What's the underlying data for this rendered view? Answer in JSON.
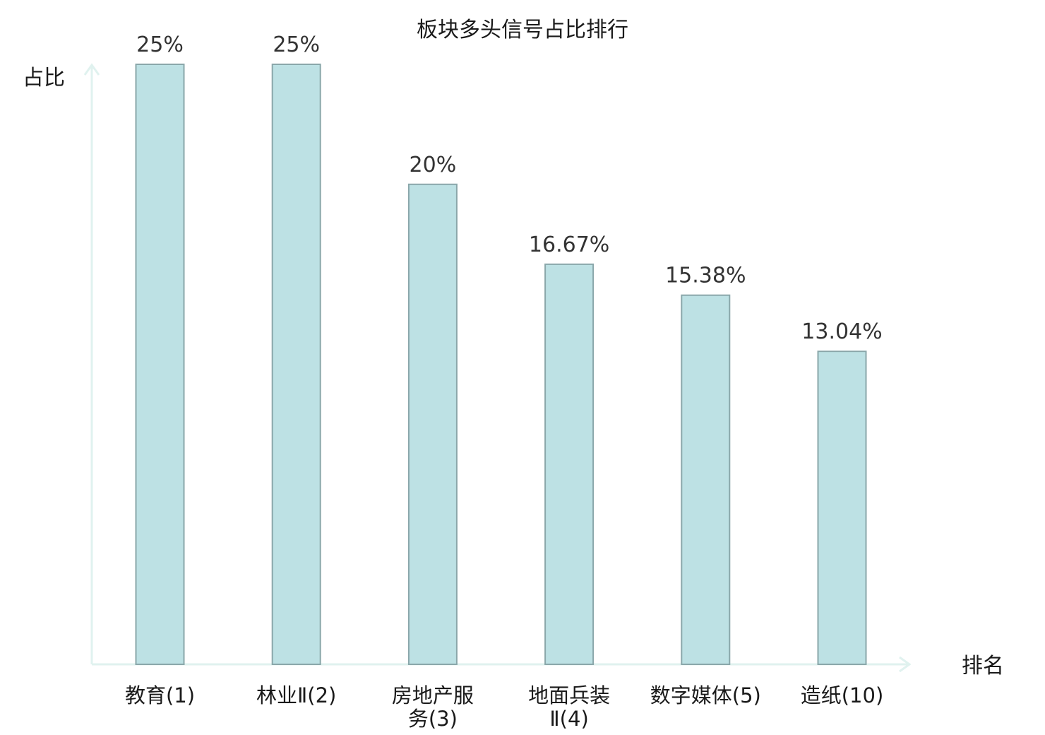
{
  "chart_data": {
    "type": "bar",
    "title": "板块多头信号占比排行",
    "ylabel": "占比",
    "xlabel": "排名",
    "ylim": [
      0,
      25
    ],
    "grid": false,
    "categories": [
      {
        "lines": [
          "教育(1)"
        ],
        "color": "#1a1a1a"
      },
      {
        "lines": [
          "林业Ⅱ(2)"
        ],
        "color": "#1a1a1a"
      },
      {
        "lines": [
          "房地产服",
          "务(3)"
        ],
        "color": "#1a1a1a"
      },
      {
        "lines": [
          "地面兵装",
          "Ⅱ(4)"
        ],
        "color": "#1a1a1a"
      },
      {
        "lines": [
          "数字媒体(5)"
        ],
        "color": "#1a1a1a"
      },
      {
        "lines": [
          "造纸(10)"
        ],
        "color": "#e02020"
      }
    ],
    "values": [
      25,
      25,
      20,
      16.67,
      15.38,
      13.04
    ],
    "value_labels": [
      "25%",
      "25%",
      "20%",
      "16.67%",
      "15.38%",
      "13.04%"
    ],
    "bar_color": "#bde1e4",
    "bar_edge_color": "#8aa7aa",
    "axis_color": "#e0f2ef"
  }
}
